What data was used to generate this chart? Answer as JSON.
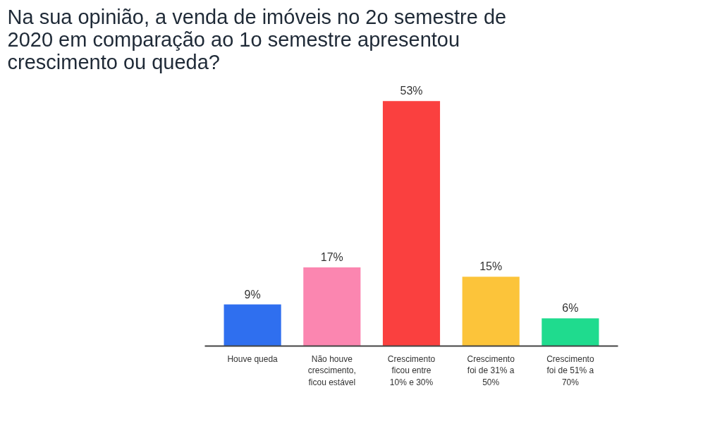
{
  "chart_data": {
    "type": "bar",
    "title": "Na sua opinião, a venda de imóveis no 2o semestre de 2020 em comparação ao 1o semestre apresentou crescimento ou queda?",
    "categories": [
      "Houve queda",
      "Não houve crescimento, ficou estável",
      "Crescimento ficou entre 10% e 30%",
      "Crescimento foi de 31% a 50%",
      "Crescimento foi de 51% a 70%"
    ],
    "values": [
      9,
      17,
      53,
      15,
      6
    ],
    "value_labels": [
      "9%",
      "17%",
      "53%",
      "15%",
      "6%"
    ],
    "colors": [
      "#2f6fef",
      "#fb86b0",
      "#fa403f",
      "#fcc43a",
      "#1fdb8e"
    ],
    "grid": false
  }
}
